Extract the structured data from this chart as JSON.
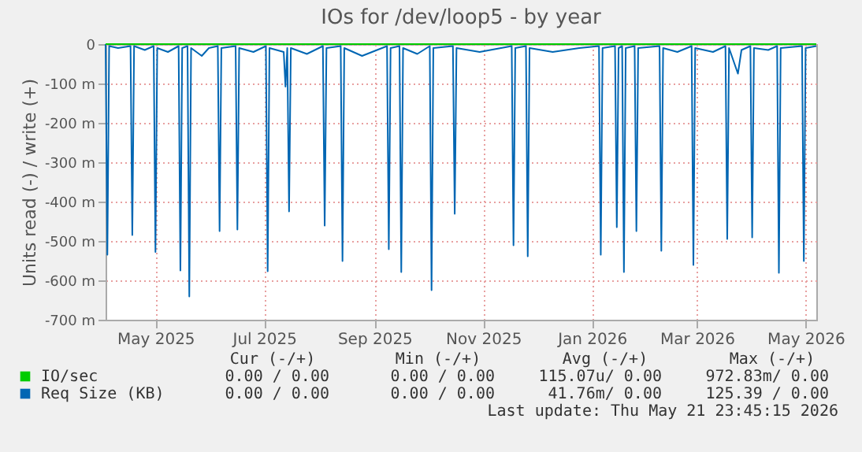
{
  "chart_data": {
    "type": "line",
    "title": "IOs for /dev/loop5 - by year",
    "ylabel": "Units read (-) / write (+)",
    "xlim": [
      "2025-04-03",
      "2026-05-07"
    ],
    "xticks": [
      {
        "value": "2025-05-01",
        "label": "May 2025"
      },
      {
        "value": "2025-07-01",
        "label": "Jul 2025"
      },
      {
        "value": "2025-09-01",
        "label": "Sep 2025"
      },
      {
        "value": "2025-11-01",
        "label": "Nov 2025"
      },
      {
        "value": "2026-01-01",
        "label": "Jan 2026"
      },
      {
        "value": "2026-03-01",
        "label": "Mar 2026"
      },
      {
        "value": "2026-05-01",
        "label": "May 2026"
      }
    ],
    "ylim": [
      -700,
      0
    ],
    "yticks": [
      {
        "value": -700,
        "label": "-700 m"
      },
      {
        "value": -600,
        "label": "-600 m"
      },
      {
        "value": -500,
        "label": "-500 m"
      },
      {
        "value": -400,
        "label": "-400 m"
      },
      {
        "value": -300,
        "label": "-300 m"
      },
      {
        "value": -200,
        "label": "-200 m"
      },
      {
        "value": -100,
        "label": "-100 m"
      },
      0
    ],
    "grid": true,
    "legend": "bottom",
    "line_style": "solid",
    "marker": "none",
    "series": [
      {
        "name": "IO/sec",
        "color": "#00cc00",
        "x": [
          "2025-04-03",
          "2026-05-07"
        ],
        "values": [
          0,
          0
        ]
      },
      {
        "name": "Req Size (KB)",
        "color": "#0066b3",
        "x": [
          "2025-04-03",
          "2025-04-04",
          "2025-04-05",
          "2025-04-10",
          "2025-04-17",
          "2025-04-18",
          "2025-04-19",
          "2025-04-25",
          "2025-04-30",
          "2025-05-01",
          "2025-05-02",
          "2025-05-08",
          "2025-05-14",
          "2025-05-15",
          "2025-05-16",
          "2025-05-19",
          "2025-05-20",
          "2025-05-21",
          "2025-05-27",
          "2025-05-31",
          "2025-06-05",
          "2025-06-06",
          "2025-06-07",
          "2025-06-15",
          "2025-06-16",
          "2025-06-17",
          "2025-06-25",
          "2025-07-02",
          "2025-07-03",
          "2025-07-04",
          "2025-07-12",
          "2025-07-13",
          "2025-07-14",
          "2025-07-15",
          "2025-07-16",
          "2025-07-25",
          "2025-08-03",
          "2025-08-04",
          "2025-08-05",
          "2025-08-13",
          "2025-08-14",
          "2025-08-15",
          "2025-08-25",
          "2025-09-08",
          "2025-09-09",
          "2025-09-10",
          "2025-09-15",
          "2025-09-16",
          "2025-09-17",
          "2025-09-25",
          "2025-10-02",
          "2025-10-03",
          "2025-10-04",
          "2025-10-15",
          "2025-10-16",
          "2025-10-17",
          "2025-10-30",
          "2025-11-17",
          "2025-11-18",
          "2025-11-19",
          "2025-11-25",
          "2025-11-26",
          "2025-11-27",
          "2025-12-10",
          "2025-12-25",
          "2026-01-05",
          "2026-01-06",
          "2026-01-07",
          "2026-01-14",
          "2026-01-15",
          "2026-01-16",
          "2026-01-18",
          "2026-01-19",
          "2026-01-20",
          "2026-01-25",
          "2026-01-26",
          "2026-01-27",
          "2026-02-08",
          "2026-02-09",
          "2026-02-10",
          "2026-02-18",
          "2026-02-26",
          "2026-02-27",
          "2026-02-28",
          "2026-03-10",
          "2026-03-17",
          "2026-03-18",
          "2026-03-19",
          "2026-03-24",
          "2026-03-26",
          "2026-03-31",
          "2026-04-01",
          "2026-04-02",
          "2026-04-10",
          "2026-04-15",
          "2026-04-16",
          "2026-04-17",
          "2026-04-29",
          "2026-04-30",
          "2026-05-01",
          "2026-05-07"
        ],
        "values": [
          0,
          -535,
          -5,
          -10,
          -5,
          -485,
          -5,
          -15,
          -5,
          -528,
          -10,
          -20,
          -5,
          -575,
          -10,
          -5,
          -641,
          -10,
          -30,
          -10,
          -5,
          -475,
          -10,
          -5,
          -471,
          -10,
          -20,
          -5,
          -577,
          -10,
          -20,
          -108,
          -10,
          -425,
          -10,
          -25,
          -5,
          -461,
          -10,
          -5,
          -551,
          -10,
          -30,
          -5,
          -521,
          -10,
          -5,
          -579,
          -10,
          -25,
          -5,
          -625,
          -10,
          -5,
          -431,
          -10,
          -20,
          -5,
          -511,
          -10,
          -5,
          -539,
          -10,
          -20,
          -10,
          -5,
          -535,
          -10,
          -5,
          -465,
          -10,
          -5,
          -579,
          -10,
          -5,
          -475,
          -10,
          -5,
          -525,
          -10,
          -20,
          -5,
          -561,
          -10,
          -20,
          -5,
          -495,
          -10,
          -75,
          -15,
          -5,
          -491,
          -10,
          -15,
          -5,
          -581,
          -10,
          -5,
          -551,
          -10,
          -5
        ]
      }
    ],
    "annotations": [
      "Cur (-/+)",
      "Min (-/+)",
      "Avg (-/+)",
      "Max (-/+)",
      "0.00 /  0.00",
      "0.00 /  0.00",
      "115.07u/  0.00",
      "972.83m/  0.00",
      "0.00 /  0.00",
      "0.00 /  0.00",
      "41.76m/  0.00",
      "125.39 /  0.00",
      "Last update: Thu May 21 23:45:15 2026"
    ]
  }
}
